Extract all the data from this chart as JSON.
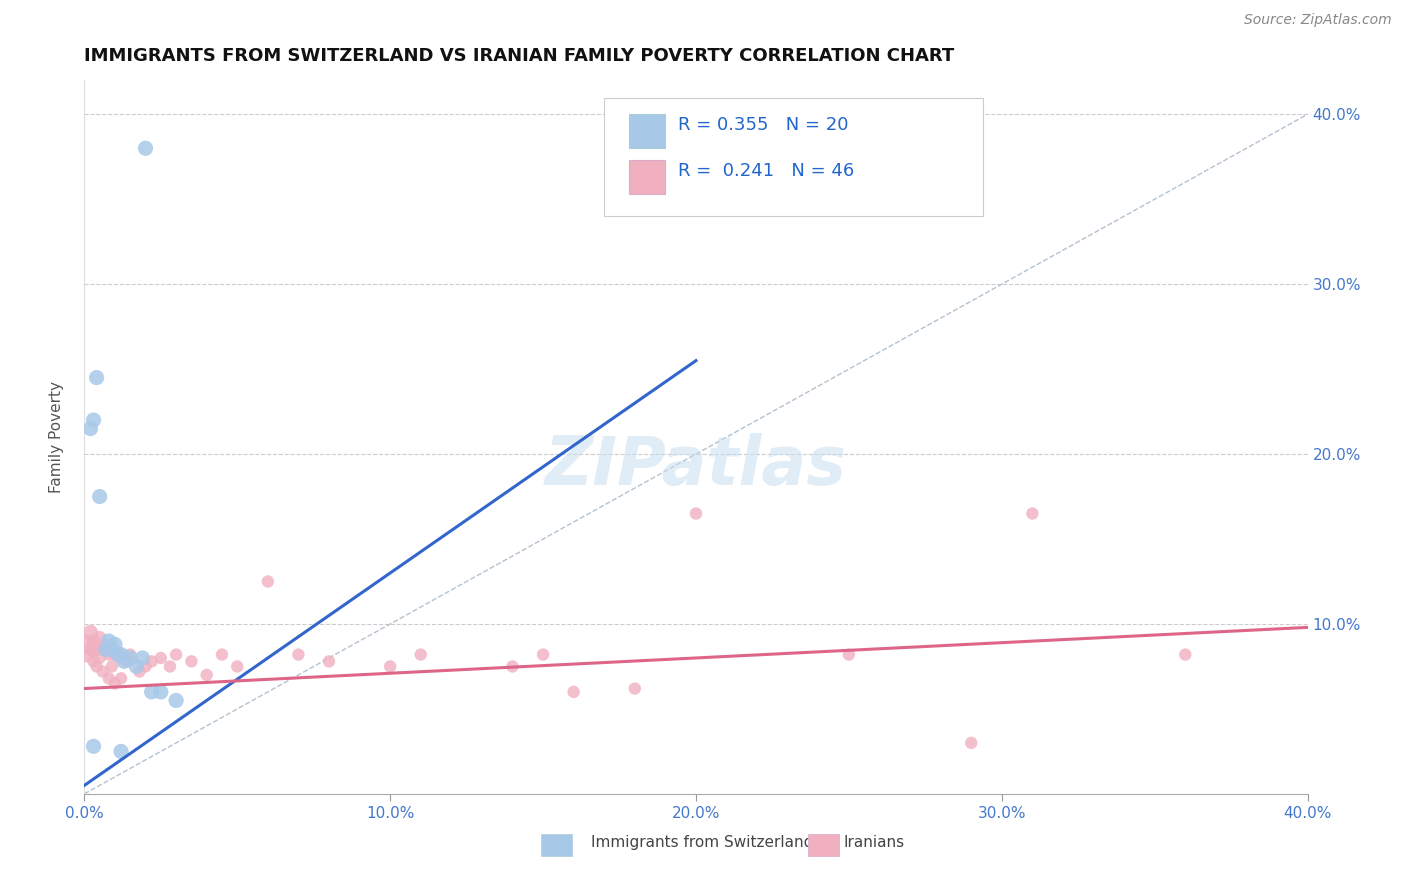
{
  "title": "IMMIGRANTS FROM SWITZERLAND VS IRANIAN FAMILY POVERTY CORRELATION CHART",
  "source": "Source: ZipAtlas.com",
  "ylabel": "Family Poverty",
  "legend_label1": "Immigrants from Switzerland",
  "legend_label2": "Iranians",
  "r1": 0.355,
  "n1": 20,
  "r2": 0.241,
  "n2": 46,
  "color_swiss": "#a8c8e8",
  "color_swiss_line": "#3366cc",
  "color_iranian": "#f0b0c0",
  "color_iranian_line": "#dd6688",
  "color_dashed": "#aabbcc",
  "xlim": [
    0.0,
    0.4
  ],
  "ylim": [
    -0.02,
    0.44
  ],
  "plot_ylim": [
    0.0,
    0.42
  ],
  "xticks": [
    0.0,
    0.1,
    0.2,
    0.3,
    0.4
  ],
  "yticks": [
    0.1,
    0.2,
    0.3,
    0.4
  ],
  "xtick_labels": [
    "0.0%",
    "10.0%",
    "20.0%",
    "30.0%",
    "40.0%"
  ],
  "ytick_labels_right": [
    "10.0%",
    "20.0%",
    "30.0%",
    "40.0%"
  ],
  "background_color": "#ffffff",
  "grid_color": "#cccccc",
  "swiss_x": [
    0.02,
    0.002,
    0.003,
    0.004,
    0.005,
    0.007,
    0.008,
    0.009,
    0.01,
    0.011,
    0.012,
    0.013,
    0.015,
    0.017,
    0.019,
    0.022,
    0.025,
    0.03,
    0.003,
    0.012
  ],
  "swiss_y": [
    0.38,
    0.215,
    0.22,
    0.245,
    0.175,
    0.085,
    0.09,
    0.085,
    0.088,
    0.082,
    0.082,
    0.078,
    0.08,
    0.075,
    0.08,
    0.06,
    0.06,
    0.055,
    0.028,
    0.025
  ],
  "iranian_x": [
    0.001,
    0.001,
    0.002,
    0.002,
    0.003,
    0.003,
    0.004,
    0.004,
    0.005,
    0.005,
    0.006,
    0.006,
    0.007,
    0.008,
    0.008,
    0.009,
    0.01,
    0.01,
    0.012,
    0.012,
    0.014,
    0.015,
    0.018,
    0.02,
    0.022,
    0.025,
    0.028,
    0.03,
    0.035,
    0.04,
    0.045,
    0.05,
    0.06,
    0.07,
    0.08,
    0.1,
    0.11,
    0.14,
    0.15,
    0.16,
    0.18,
    0.2,
    0.25,
    0.29,
    0.31,
    0.36
  ],
  "iranian_y": [
    0.088,
    0.082,
    0.095,
    0.085,
    0.09,
    0.078,
    0.085,
    0.075,
    0.092,
    0.08,
    0.085,
    0.072,
    0.088,
    0.082,
    0.068,
    0.075,
    0.082,
    0.065,
    0.08,
    0.068,
    0.078,
    0.082,
    0.072,
    0.075,
    0.078,
    0.08,
    0.075,
    0.082,
    0.078,
    0.07,
    0.082,
    0.075,
    0.125,
    0.082,
    0.078,
    0.075,
    0.082,
    0.075,
    0.082,
    0.06,
    0.062,
    0.165,
    0.082,
    0.03,
    0.165,
    0.082
  ],
  "swiss_line_x": [
    0.0,
    0.2
  ],
  "swiss_line_y": [
    0.005,
    0.255
  ],
  "iranian_line_x": [
    0.0,
    0.4
  ],
  "iranian_line_y": [
    0.062,
    0.098
  ],
  "dash_line_x": [
    0.0,
    0.4
  ],
  "dash_line_y": [
    0.0,
    0.4
  ],
  "title_fontsize": 13,
  "axis_fontsize": 11,
  "tick_fontsize": 11,
  "legend_fontsize": 13
}
